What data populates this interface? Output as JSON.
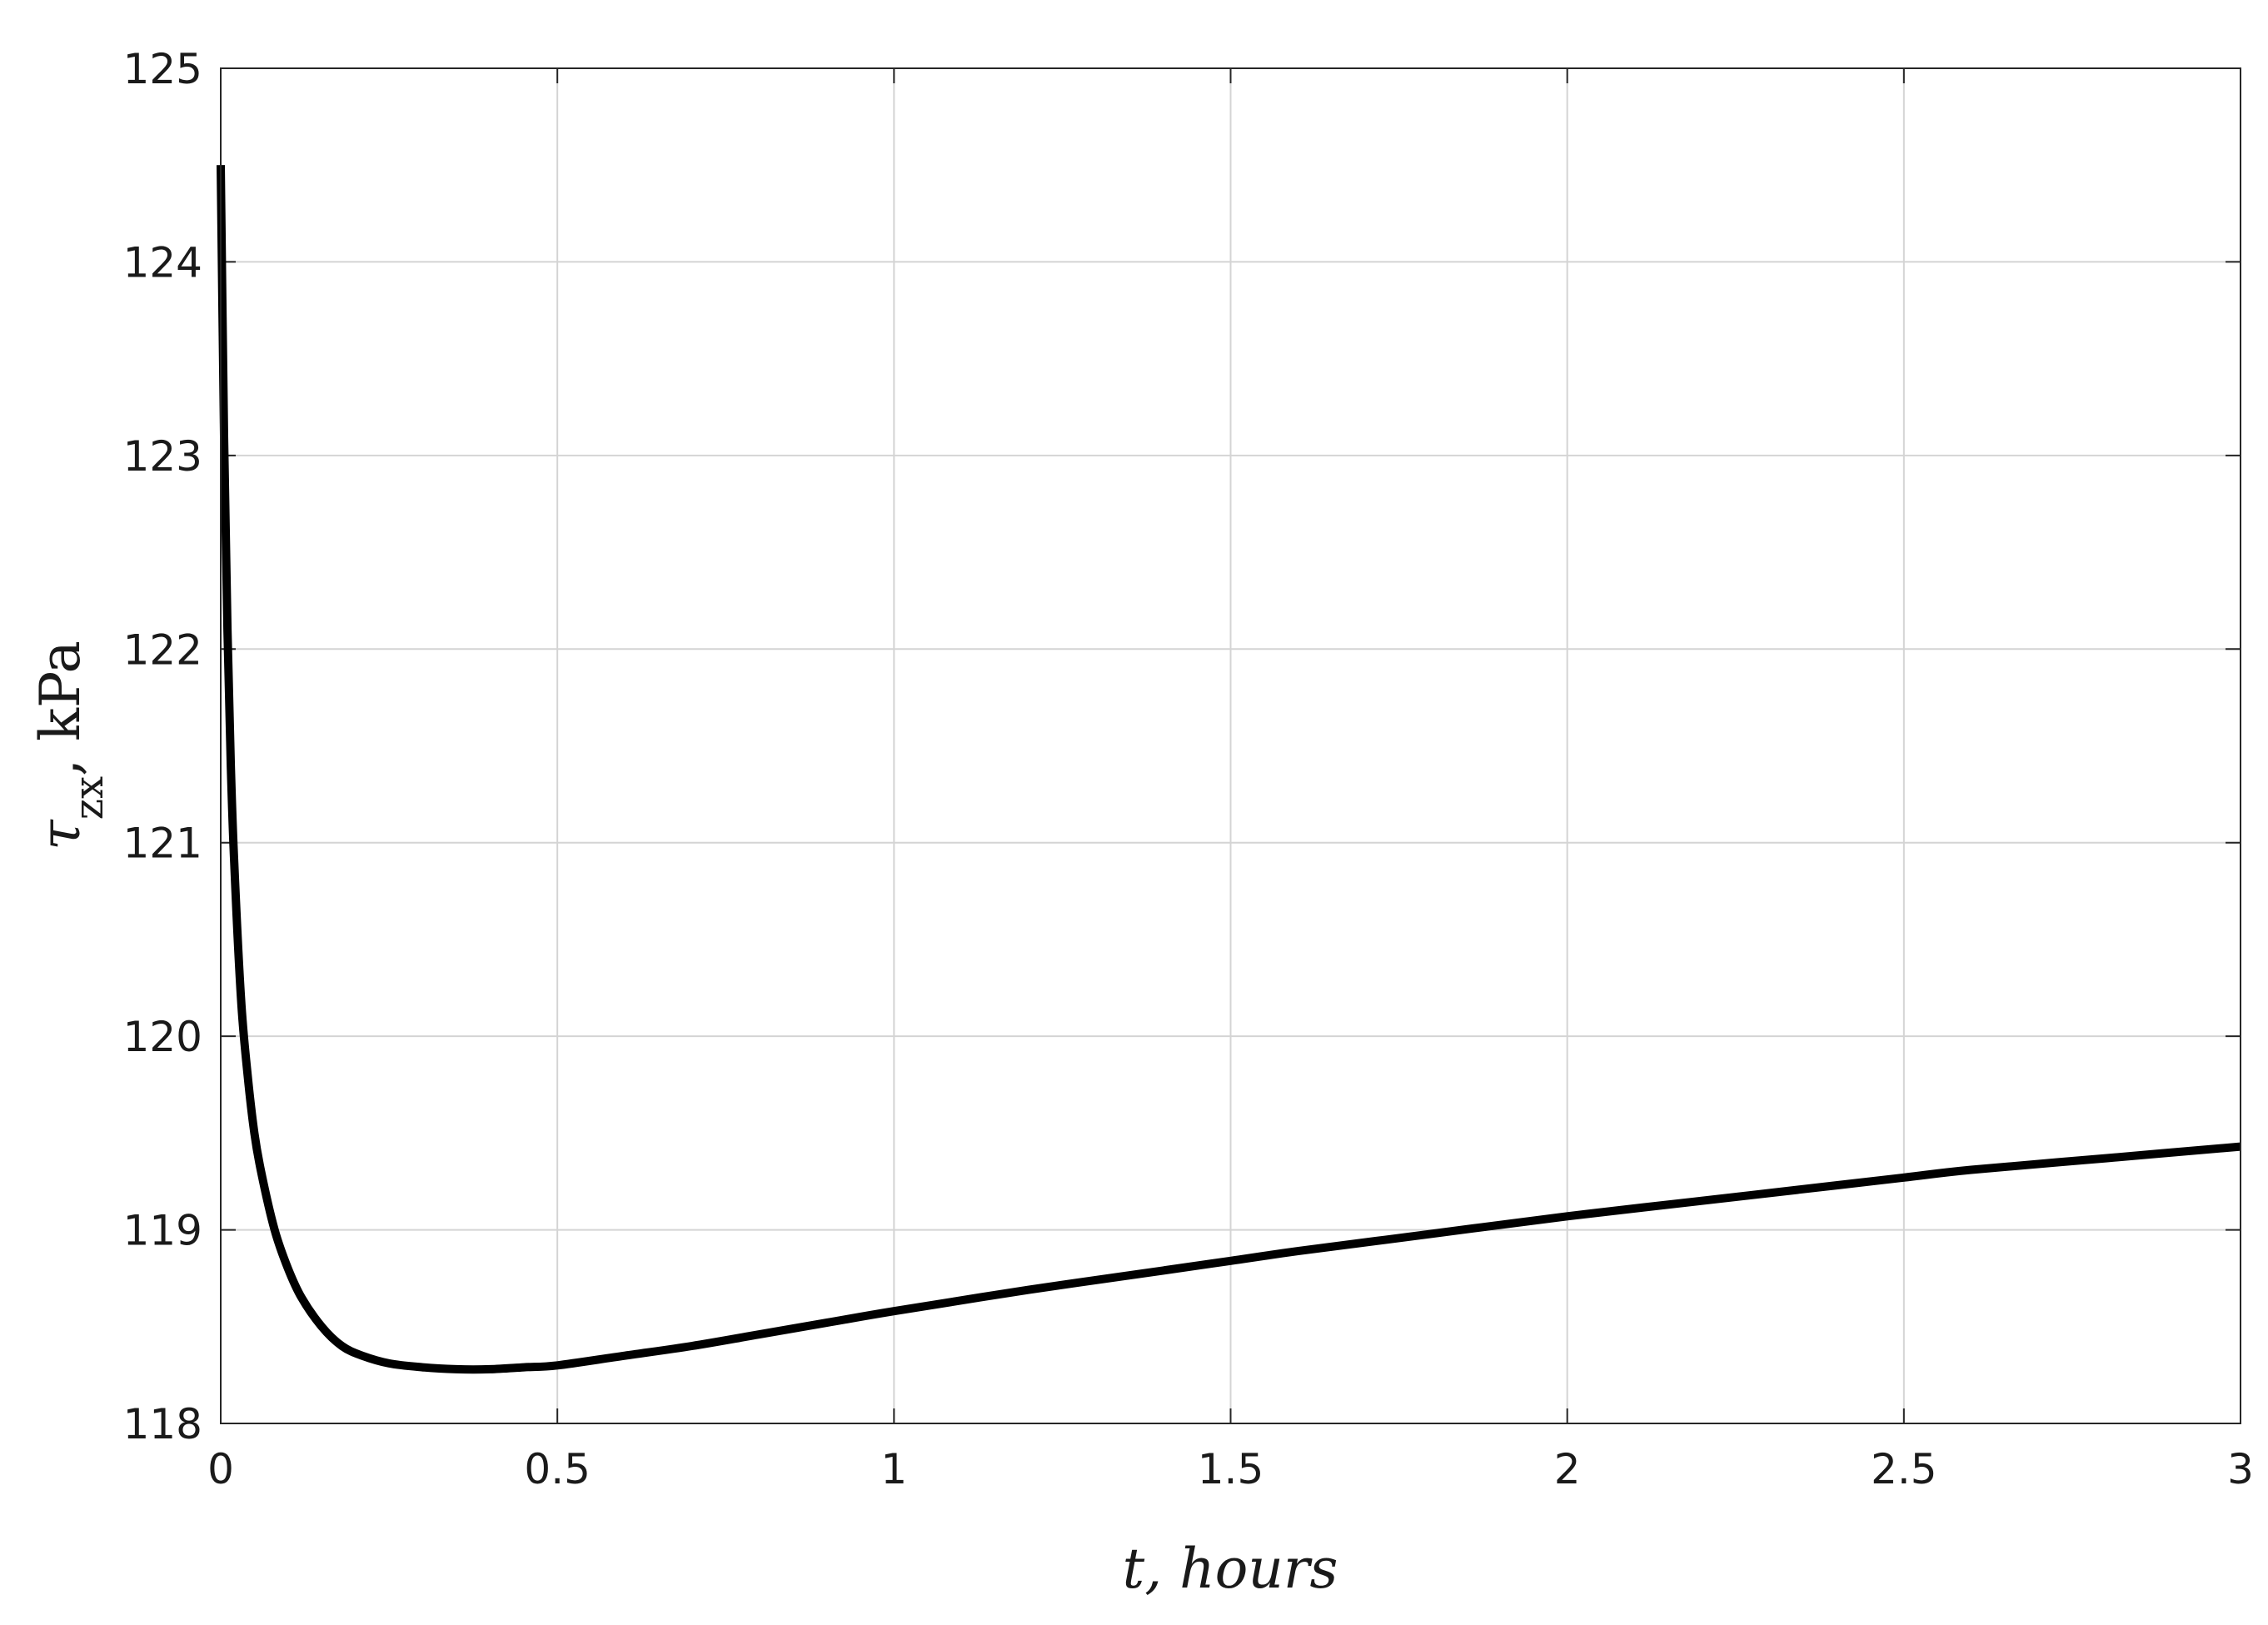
{
  "chart_data": {
    "type": "line",
    "title": "",
    "xlabel": "t, hours",
    "ylabel": {
      "symbol": "τ",
      "subscript": "zx",
      "unit": ", kPa"
    },
    "xlim": [
      0,
      3
    ],
    "ylim": [
      118,
      125
    ],
    "x_ticks": [
      "0",
      "0.5",
      "1",
      "1.5",
      "2",
      "2.5",
      "3"
    ],
    "y_ticks": [
      "118",
      "119",
      "120",
      "121",
      "122",
      "123",
      "124",
      "125"
    ],
    "grid": true,
    "series": [
      {
        "color": "#000000",
        "x": [
          0.0,
          0.005,
          0.01,
          0.015,
          0.02,
          0.03,
          0.04,
          0.05,
          0.06,
          0.08,
          0.1,
          0.12,
          0.15,
          0.18,
          0.21,
          0.25,
          0.3,
          0.35,
          0.4,
          0.45,
          0.5,
          0.6,
          0.7,
          0.8,
          0.9,
          1.0,
          1.2,
          1.4,
          1.5,
          1.6,
          1.8,
          2.0,
          2.2,
          2.4,
          2.5,
          2.6,
          2.8,
          3.0
        ],
        "y": [
          124.5,
          123.1,
          122.1,
          121.4,
          120.9,
          120.2,
          119.8,
          119.5,
          119.3,
          119.0,
          118.8,
          118.65,
          118.5,
          118.4,
          118.35,
          118.31,
          118.29,
          118.28,
          118.28,
          118.29,
          118.3,
          118.35,
          118.4,
          118.46,
          118.52,
          118.58,
          118.69,
          118.79,
          118.84,
          118.89,
          118.98,
          119.07,
          119.15,
          119.23,
          119.27,
          119.31,
          119.37,
          119.43
        ]
      }
    ]
  }
}
